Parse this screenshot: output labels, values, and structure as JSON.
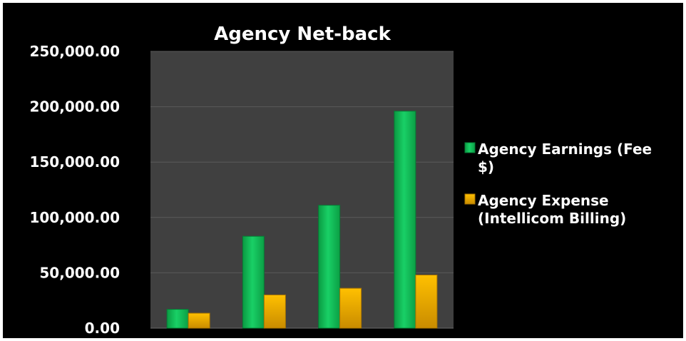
{
  "chart_data": {
    "type": "bar",
    "title": "Agency Net-back",
    "xlabel": "",
    "ylabel": "",
    "categories": [
      "",
      "",
      "",
      ""
    ],
    "ylim": [
      0,
      250000
    ],
    "yticks": [
      "0.00",
      "50,000.00",
      "100,000.00",
      "150,000.00",
      "200,000.00",
      "250,000.00"
    ],
    "grid": true,
    "legend_position": "right",
    "series": [
      {
        "name": "Agency Earnings (Fee $)",
        "legend_lines": [
          "Agency Earnings (Fee",
          "$)"
        ],
        "color": "#0fbf55",
        "values": [
          17000,
          83000,
          111000,
          196000
        ]
      },
      {
        "name": "Agency Expense (Intellicom Billing)",
        "legend_lines": [
          "Agency Expense",
          "(Intellicom Billing)"
        ],
        "color": "#f0a800",
        "values": [
          13500,
          30000,
          36000,
          48000
        ]
      }
    ]
  },
  "colors": {
    "background": "#000000",
    "plot_area": "#404040",
    "gridline": "#5a5a5a",
    "text": "#ffffff"
  }
}
